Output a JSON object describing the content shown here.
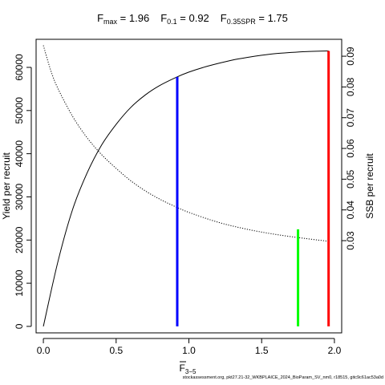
{
  "chart_data": {
    "type": "line",
    "title_parts": [
      {
        "sym": "F",
        "sub": "max",
        "eq": " = 1.96"
      },
      {
        "sym": "F",
        "sub": "0.1",
        "eq": " = 0.92"
      },
      {
        "sym": "F",
        "sub": "0.35SPR",
        "eq": " = 1.75"
      }
    ],
    "xlabel_main": "F",
    "xlabel_sub": "3−5",
    "ylabel_left": "Yield per recruit",
    "ylabel_right": "SSB per recruit",
    "xlim": [
      -0.05,
      2.05
    ],
    "ylim_left": [
      -1500,
      66500
    ],
    "ylim_right": [
      0.0,
      0.0955
    ],
    "x_ticks": [
      0.0,
      0.5,
      1.0,
      1.5,
      2.0
    ],
    "x_tick_labels": [
      "0.0",
      "0.5",
      "1.0",
      "1.5",
      "2.0"
    ],
    "y_left_ticks": [
      0,
      10000,
      20000,
      30000,
      40000,
      50000,
      60000
    ],
    "y_left_tick_labels": [
      "0",
      "10000",
      "20000",
      "30000",
      "40000",
      "50000",
      "60000"
    ],
    "y_right_ticks": [
      0.03,
      0.04,
      0.05,
      0.06,
      0.07,
      0.08,
      0.09
    ],
    "y_right_tick_labels": [
      "0.03",
      "0.04",
      "0.05",
      "0.06",
      "0.07",
      "0.08",
      "0.09"
    ],
    "series": [
      {
        "axis": "left",
        "style": "solid",
        "color": "#000000",
        "x": [
          0.0,
          0.1,
          0.2,
          0.3,
          0.4,
          0.5,
          0.6,
          0.7,
          0.8,
          0.92,
          1.0,
          1.1,
          1.2,
          1.3,
          1.4,
          1.5,
          1.6,
          1.7,
          1.8,
          1.9,
          1.96
        ],
        "y": [
          0,
          15000,
          27000,
          35500,
          42000,
          46800,
          50700,
          53600,
          55800,
          57800,
          58900,
          60000,
          60900,
          61700,
          62300,
          62800,
          63200,
          63450,
          63650,
          63750,
          63800
        ]
      },
      {
        "axis": "right",
        "style": "dotted",
        "color": "#000000",
        "x": [
          0.0,
          0.05,
          0.1,
          0.2,
          0.3,
          0.4,
          0.5,
          0.6,
          0.7,
          0.8,
          0.9,
          1.0,
          1.2,
          1.4,
          1.6,
          1.8,
          1.96
        ],
        "y": [
          0.0935,
          0.0855,
          0.0795,
          0.0705,
          0.0635,
          0.058,
          0.0535,
          0.0495,
          0.0462,
          0.0435,
          0.0412,
          0.0392,
          0.036,
          0.0337,
          0.032,
          0.0307,
          0.0298
        ]
      }
    ],
    "reference_lines": [
      {
        "x": 0.92,
        "y_top": 57800,
        "axis": "left",
        "color": "#0000ff"
      },
      {
        "x": 1.75,
        "y_top": 22500,
        "axis": "left",
        "color": "#00ff00"
      },
      {
        "x": 1.96,
        "y_top": 63800,
        "axis": "left",
        "color": "#ff0000"
      }
    ],
    "grid": false,
    "legend": "none"
  },
  "footer": "stockassessment.org, pkt27.21-32_WKBPLAICE_2024_BioParam_SV_nm0, r18515, gitc9c61ac53a0d"
}
